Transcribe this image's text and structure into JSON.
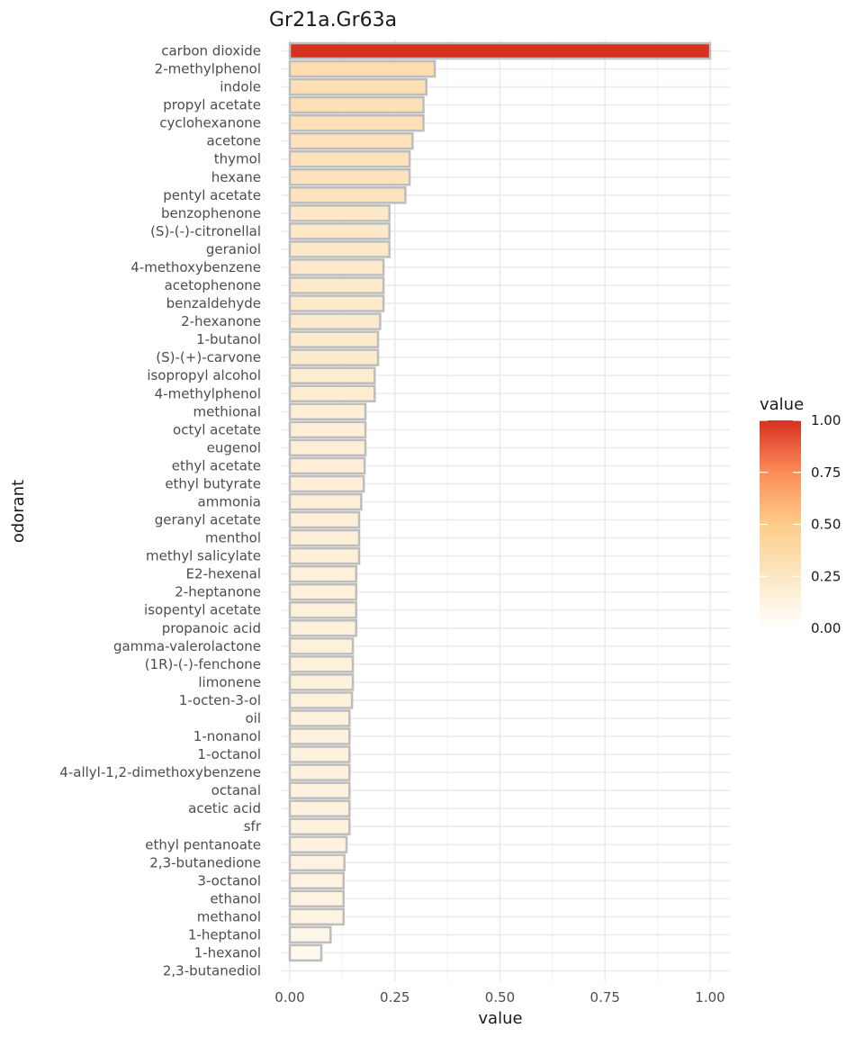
{
  "chart_data": {
    "type": "bar",
    "orientation": "horizontal",
    "title": "Gr21a.Gr63a",
    "xlabel": "value",
    "ylabel": "odorant",
    "xlim": [
      0,
      1.0
    ],
    "x_ticks": [
      "0.00",
      "0.25",
      "0.50",
      "0.75",
      "1.00"
    ],
    "grid": true,
    "legend": {
      "title": "value",
      "placement": "right",
      "ticks": [
        "1.00",
        "0.75",
        "0.50",
        "0.25",
        "0.00"
      ],
      "colors": [
        "#ffffff",
        "#fde7c4",
        "#fdcc8a",
        "#fc8d59",
        "#d7301f"
      ]
    },
    "bar_outline_color": "#bdbdbd",
    "categories": [
      "carbon dioxide",
      "2-methylphenol",
      "indole",
      "propyl acetate",
      "cyclohexanone",
      "acetone",
      "thymol",
      "hexane",
      "pentyl acetate",
      "benzophenone",
      "(S)-(-)-citronellal",
      "geraniol",
      "4-methoxybenzene",
      "acetophenone",
      "benzaldehyde",
      "2-hexanone",
      "1-butanol",
      "(S)-(+)-carvone",
      "isopropyl alcohol",
      "4-methylphenol",
      "methional",
      "octyl acetate",
      "eugenol",
      "ethyl acetate",
      "ethyl butyrate",
      "ammonia",
      "geranyl acetate",
      "menthol",
      "methyl salicylate",
      "E2-hexenal",
      "2-heptanone",
      "isopentyl acetate",
      "propanoic acid",
      "gamma-valerolactone",
      "(1R)-(-)-fenchone",
      "limonene",
      "1-octen-3-ol",
      "oil",
      "1-nonanol",
      "1-octanol",
      "4-allyl-1,2-dimethoxybenzene",
      "octanal",
      "acetic acid",
      "sfr",
      "ethyl pentanoate",
      "2,3-butanedione",
      "3-octanol",
      "ethanol",
      "methanol",
      "1-heptanol",
      "1-hexanol",
      "2,3-butanediol"
    ],
    "values": [
      1.0,
      0.345,
      0.325,
      0.318,
      0.318,
      0.292,
      0.285,
      0.285,
      0.275,
      0.237,
      0.237,
      0.237,
      0.223,
      0.223,
      0.223,
      0.215,
      0.21,
      0.21,
      0.202,
      0.202,
      0.18,
      0.18,
      0.18,
      0.178,
      0.176,
      0.17,
      0.165,
      0.165,
      0.165,
      0.158,
      0.158,
      0.158,
      0.158,
      0.15,
      0.15,
      0.15,
      0.148,
      0.142,
      0.142,
      0.142,
      0.142,
      0.142,
      0.142,
      0.142,
      0.135,
      0.13,
      0.128,
      0.128,
      0.128,
      0.097,
      0.075,
      0.0
    ]
  }
}
